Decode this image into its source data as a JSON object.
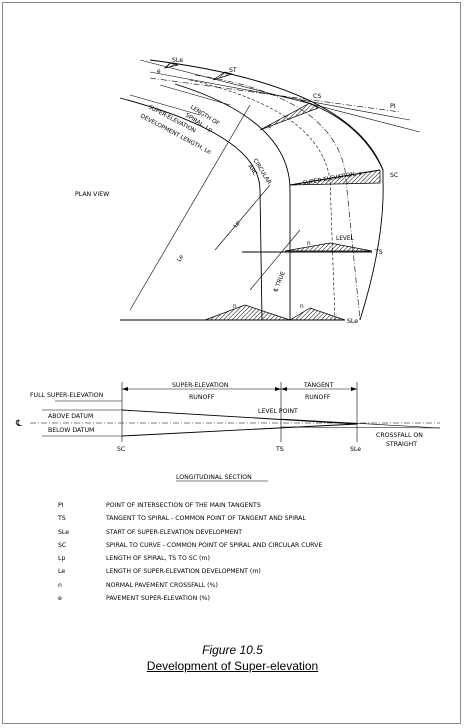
{
  "figure": {
    "title": "Figure 10.5",
    "subtitle": "Development of Super-elevation"
  },
  "plan_view": {
    "heading": "PLAN VIEW",
    "labels": {
      "sle_top": "SLe",
      "st": "ST",
      "cs": "CS",
      "pi": "PI",
      "sc": "SC",
      "ts": "TS",
      "sle_bottom": "SLe",
      "length_of_spiral": "LENGTH OF",
      "length_of_spiral_2": "SPIRAL, Lp",
      "super_dev": "SUPER-ELEVATION",
      "super_dev_2": "DEVELOPMENT LENGTH, Le",
      "circular_arc": "CIRCULAR",
      "circular_arc_2": "ARC",
      "super_elevation_e": "SUPER-ELEVATION, e",
      "level": "LEVEL",
      "cl_true": "℄ TRUE",
      "lp": "Lp",
      "le": "Le",
      "e_small_1": "e",
      "e_small_2": "e",
      "n_1": "n",
      "n_2": "n",
      "n_3": "n"
    }
  },
  "longitudinal": {
    "full_super": "FULL SUPER-ELEVATION",
    "runoff_top": "SUPER-ELEVATION",
    "runoff_bottom": "RUNOFF",
    "tangent_top": "TANGENT",
    "tangent_bottom": "RUNOFF",
    "level_point": "LEVEL POINT",
    "above_datum": "ABOVE DATUM",
    "below_datum": "BELOW DATUM",
    "cl_symbol": "℄",
    "sc": "SC",
    "ts": "TS",
    "sle": "SLe",
    "crossfall_1": "CROSSFALL ON",
    "crossfall_2": "STRAIGHT",
    "heading": "LONGITUDINAL SECTION"
  },
  "legend": [
    {
      "key": "PI",
      "value": "POINT OF INTERSECTION OF THE MAIN TANGENTS"
    },
    {
      "key": "TS",
      "value": "TANGENT TO SPIRAL - COMMON POINT OF TANGENT AND SPIRAL"
    },
    {
      "key": "SLe",
      "value": "START OF SUPER-ELEVATION DEVELOPMENT"
    },
    {
      "key": "SC",
      "value": "SPIRAL TO CURVE - COMMON POINT OF SPIRAL AND CIRCULAR CURVE"
    },
    {
      "key": "Lp",
      "value": "LENGTH OF SPIRAL, TS TO SC (m)"
    },
    {
      "key": "Le",
      "value": "LENGTH OF SUPER-ELEVATION DEVELOPMENT (m)"
    },
    {
      "key": "n",
      "value": "NORMAL PAVEMENT CROSSFALL (%)"
    },
    {
      "key": "e",
      "value": "PAVEMENT SUPER-ELEVATION (%)"
    }
  ]
}
